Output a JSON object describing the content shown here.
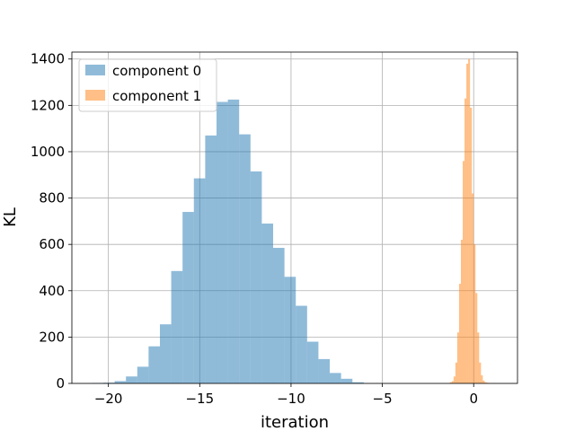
{
  "chart_data": {
    "type": "histogram",
    "title": "",
    "xlabel": "iteration",
    "ylabel": "KL",
    "xlim": [
      -22,
      2.4
    ],
    "ylim": [
      0,
      1430
    ],
    "xticks": [
      -20,
      -15,
      -10,
      -5,
      0
    ],
    "xtick_labels": [
      "−20",
      "−15",
      "−10",
      "−5",
      "0"
    ],
    "yticks": [
      0,
      200,
      400,
      600,
      800,
      1000,
      1200,
      1400
    ],
    "ytick_labels": [
      "0",
      "200",
      "400",
      "600",
      "800",
      "1000",
      "1200",
      "1400"
    ],
    "grid": true,
    "legend_position": "top-left",
    "series": [
      {
        "name": "component 0",
        "color": "#1f77b4",
        "alpha": 0.5,
        "bin_start": -20.9,
        "bin_width": 0.62,
        "counts": [
          2,
          3,
          10,
          30,
          72,
          160,
          255,
          485,
          740,
          885,
          1070,
          1215,
          1225,
          1075,
          915,
          690,
          585,
          460,
          335,
          180,
          105,
          45,
          20,
          5
        ]
      },
      {
        "name": "component 1",
        "color": "#ff7f0e",
        "alpha": 0.5,
        "bin_start": -1.3,
        "bin_width": 0.1,
        "counts": [
          5,
          10,
          30,
          90,
          220,
          430,
          620,
          960,
          1230,
          1380,
          1400,
          1190,
          820,
          600,
          390,
          220,
          90,
          35,
          12,
          5,
          3,
          1,
          1,
          1
        ]
      }
    ]
  }
}
